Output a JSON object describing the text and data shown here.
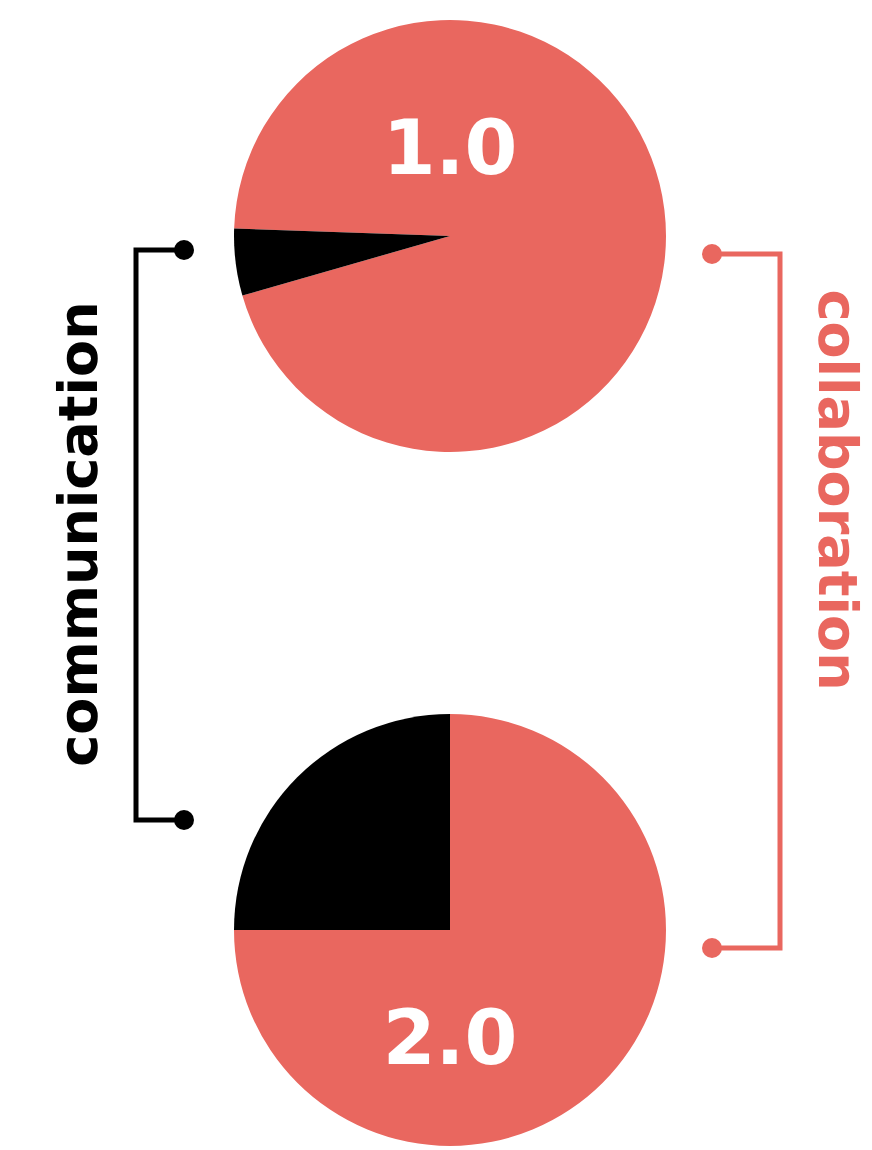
{
  "chart_data": [
    {
      "type": "pie",
      "title": "1.0",
      "categories": [
        "collaboration",
        "communication"
      ],
      "values": [
        95,
        5
      ],
      "colors": [
        "#e9675f",
        "#000000"
      ]
    },
    {
      "type": "pie",
      "title": "2.0",
      "categories": [
        null,
        null
      ],
      "values": [
        75,
        25
      ],
      "colors": [
        "#e9675f",
        "#000000"
      ]
    }
  ]
}
